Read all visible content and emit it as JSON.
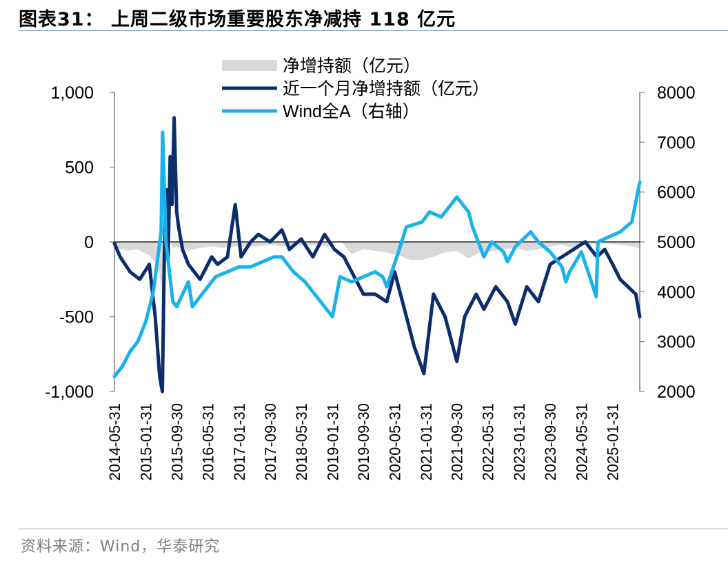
{
  "page": {
    "title": "图表31：  上周二级市场重要股东净减持 118 亿元",
    "source": "资料来源：Wind，华泰研究"
  },
  "chart_data": {
    "type": "line",
    "legend_position": "top-center",
    "grid": false,
    "colors": {
      "bar": "#d9d9d9",
      "monthly": "#0c2d6b",
      "winda": "#19b2ea",
      "axis": "#7f7f7f"
    },
    "y_left": {
      "range": [
        -1000,
        1000
      ],
      "ticks": [
        -1000,
        -500,
        0,
        500,
        1000
      ],
      "tick_labels": [
        "-1,000",
        "-500",
        "0",
        "500",
        "1,000"
      ]
    },
    "y_right": {
      "range": [
        2000,
        8000
      ],
      "ticks": [
        2000,
        3000,
        4000,
        5000,
        6000,
        7000,
        8000
      ],
      "tick_labels": [
        "2000",
        "3000",
        "4000",
        "5000",
        "6000",
        "7000",
        "8000"
      ]
    },
    "x_range": [
      "2014-05-31",
      "2025-08-31"
    ],
    "x_tick_labels": [
      "2014-05-31",
      "2015-01-31",
      "2015-09-30",
      "2016-05-31",
      "2017-01-31",
      "2017-09-30",
      "2018-05-31",
      "2019-01-31",
      "2019-09-30",
      "2020-05-31",
      "2021-01-31",
      "2021-09-30",
      "2022-05-31",
      "2023-01-31",
      "2023-09-30",
      "2024-05-31",
      "2025-01-31"
    ],
    "series": [
      {
        "name": "净增持额（亿元）",
        "type": "area",
        "axis": "left",
        "x": [
          "2014-05-31",
          "2014-08-31",
          "2014-11-30",
          "2015-02-28",
          "2015-04-30",
          "2015-06-15",
          "2015-07-15",
          "2015-08-31",
          "2015-10-31",
          "2015-12-31",
          "2016-03-31",
          "2016-06-30",
          "2016-09-30",
          "2016-12-31",
          "2017-03-31",
          "2017-06-30",
          "2017-09-30",
          "2017-12-31",
          "2018-03-31",
          "2018-06-30",
          "2018-09-30",
          "2018-12-31",
          "2019-03-31",
          "2019-06-30",
          "2019-09-30",
          "2019-12-31",
          "2020-03-31",
          "2020-06-30",
          "2020-09-30",
          "2020-12-31",
          "2021-03-31",
          "2021-06-30",
          "2021-09-30",
          "2021-12-31",
          "2022-03-31",
          "2022-06-30",
          "2022-09-30",
          "2022-12-31",
          "2023-03-31",
          "2023-06-30",
          "2023-09-30",
          "2023-12-31",
          "2024-03-31",
          "2024-06-30",
          "2024-09-30",
          "2024-12-31",
          "2025-03-31",
          "2025-06-30",
          "2025-08-31"
        ],
        "values": [
          -30,
          -60,
          -50,
          -90,
          -150,
          -350,
          60,
          -40,
          -30,
          -60,
          -40,
          -30,
          -40,
          -30,
          -30,
          -30,
          -20,
          -30,
          -20,
          -20,
          -20,
          -30,
          10,
          -80,
          -50,
          -60,
          -70,
          -90,
          -120,
          -120,
          -100,
          -70,
          -60,
          -110,
          -70,
          -60,
          -50,
          -40,
          -60,
          -50,
          -30,
          -20,
          -40,
          -20,
          -10,
          -10,
          -20,
          -30,
          -40
        ]
      },
      {
        "name": "近一个月净增持额（亿元）",
        "type": "line",
        "axis": "left",
        "x": [
          "2014-05-31",
          "2014-07-15",
          "2014-09-30",
          "2014-12-15",
          "2015-02-28",
          "2015-04-15",
          "2015-05-20",
          "2015-06-10",
          "2015-06-25",
          "2015-07-10",
          "2015-07-25",
          "2015-08-10",
          "2015-08-25",
          "2015-09-10",
          "2015-09-30",
          "2015-10-15",
          "2015-11-15",
          "2015-12-31",
          "2016-03-31",
          "2016-06-30",
          "2016-08-15",
          "2016-10-31",
          "2016-12-31",
          "2017-02-15",
          "2017-04-30",
          "2017-06-30",
          "2017-09-30",
          "2017-12-31",
          "2018-02-28",
          "2018-05-31",
          "2018-08-31",
          "2018-11-30",
          "2019-02-15",
          "2019-04-30",
          "2019-06-30",
          "2019-09-30",
          "2019-12-31",
          "2020-03-31",
          "2020-05-31",
          "2020-08-31",
          "2020-10-31",
          "2021-01-15",
          "2021-03-31",
          "2021-06-30",
          "2021-09-30",
          "2021-11-30",
          "2022-02-28",
          "2022-04-30",
          "2022-07-31",
          "2022-10-31",
          "2022-12-31",
          "2023-03-31",
          "2023-06-30",
          "2023-09-30",
          "2023-12-31",
          "2024-03-31",
          "2024-06-30",
          "2024-09-30",
          "2024-11-30",
          "2025-01-31",
          "2025-03-31",
          "2025-05-31",
          "2025-07-31",
          "2025-08-31"
        ],
        "values": [
          -10,
          -100,
          -200,
          -250,
          -150,
          -500,
          -900,
          -1000,
          -100,
          350,
          -100,
          570,
          250,
          830,
          200,
          100,
          -50,
          -150,
          -250,
          -100,
          -150,
          -100,
          250,
          -100,
          0,
          50,
          0,
          80,
          -50,
          20,
          -100,
          50,
          -50,
          -100,
          -200,
          -350,
          -350,
          -400,
          -200,
          -500,
          -700,
          -880,
          -350,
          -500,
          -800,
          -500,
          -350,
          -450,
          -300,
          -400,
          -550,
          -300,
          -400,
          -150,
          -100,
          -50,
          0,
          -100,
          -50,
          -150,
          -250,
          -300,
          -350,
          -500
        ]
      },
      {
        "name": "Wind全A（右轴）",
        "type": "line",
        "axis": "right",
        "x": [
          "2014-05-31",
          "2014-07-31",
          "2014-09-30",
          "2014-11-30",
          "2015-01-31",
          "2015-03-31",
          "2015-05-31",
          "2015-06-12",
          "2015-07-08",
          "2015-08-31",
          "2015-09-30",
          "2015-12-31",
          "2016-01-31",
          "2016-04-30",
          "2016-07-31",
          "2016-10-31",
          "2017-01-31",
          "2017-04-30",
          "2017-07-31",
          "2017-10-31",
          "2017-12-31",
          "2018-03-31",
          "2018-06-30",
          "2018-09-30",
          "2018-12-31",
          "2019-01-31",
          "2019-03-31",
          "2019-06-30",
          "2019-09-30",
          "2019-12-31",
          "2020-02-28",
          "2020-03-31",
          "2020-06-30",
          "2020-08-31",
          "2020-12-31",
          "2021-02-28",
          "2021-05-31",
          "2021-09-30",
          "2021-12-31",
          "2022-01-31",
          "2022-04-30",
          "2022-06-30",
          "2022-09-30",
          "2022-10-31",
          "2022-12-31",
          "2023-04-30",
          "2023-06-30",
          "2023-09-30",
          "2023-12-31",
          "2024-01-31",
          "2024-02-29",
          "2024-05-31",
          "2024-08-31",
          "2024-09-24",
          "2024-10-08",
          "2024-12-31",
          "2025-03-31",
          "2025-06-30",
          "2025-08-31"
        ],
        "values": [
          2300,
          2500,
          2800,
          3000,
          3400,
          4000,
          5200,
          7200,
          5000,
          3800,
          3700,
          4200,
          3700,
          4000,
          4300,
          4400,
          4500,
          4500,
          4600,
          4700,
          4700,
          4400,
          4200,
          3900,
          3600,
          3500,
          4300,
          4200,
          4300,
          4400,
          4300,
          4100,
          4800,
          5300,
          5400,
          5600,
          5500,
          5900,
          5600,
          5300,
          4700,
          5000,
          4800,
          4600,
          4900,
          5200,
          5000,
          4800,
          4500,
          4200,
          4400,
          4800,
          4100,
          3900,
          5000,
          5100,
          5200,
          5400,
          6200
        ]
      }
    ]
  }
}
